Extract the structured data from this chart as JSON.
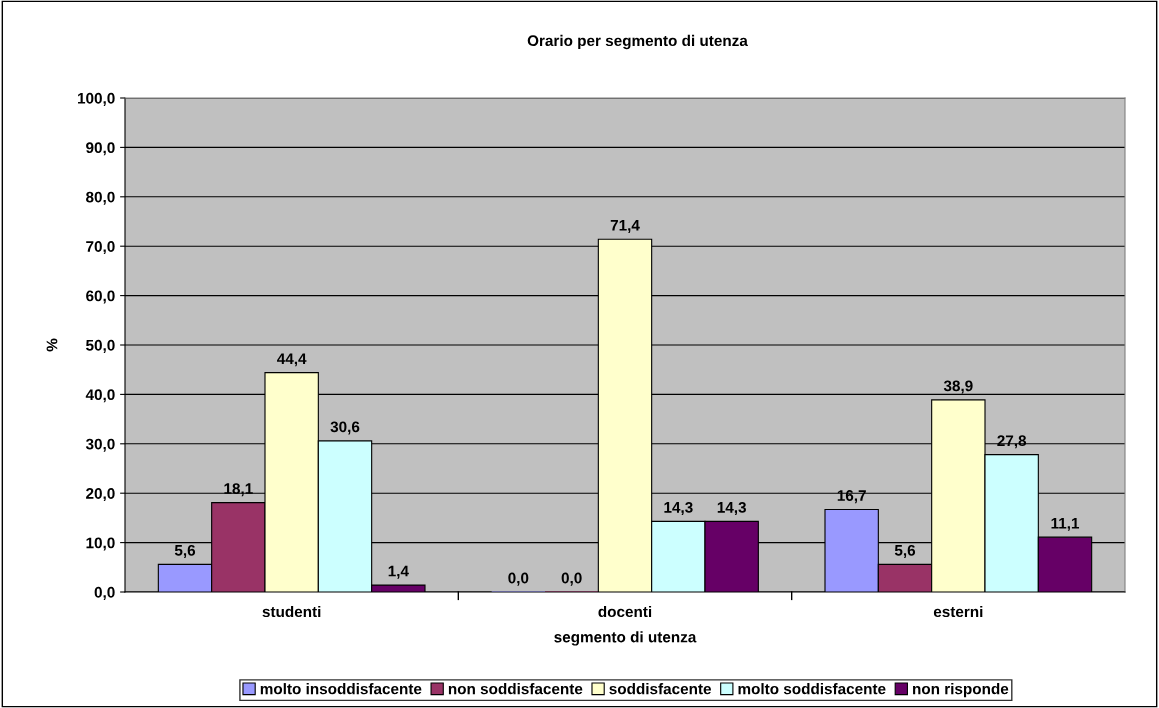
{
  "chart_data": {
    "type": "bar",
    "title": "Orario per segmento di utenza",
    "xlabel": "segmento di utenza",
    "ylabel": "%",
    "categories": [
      "studenti",
      "docenti",
      "esterni"
    ],
    "series": [
      {
        "name": "molto insoddisfacente",
        "color": "#9999ff",
        "values": [
          5.6,
          0.0,
          16.7
        ],
        "value_labels": [
          "5,6",
          "0,0",
          "16,7"
        ]
      },
      {
        "name": "non soddisfacente",
        "color": "#993366",
        "values": [
          18.1,
          0.0,
          5.6
        ],
        "value_labels": [
          "18,1",
          "0,0",
          "5,6"
        ]
      },
      {
        "name": "soddisfacente",
        "color": "#ffffcc",
        "values": [
          44.4,
          71.4,
          38.9
        ],
        "value_labels": [
          "44,4",
          "71,4",
          "38,9"
        ]
      },
      {
        "name": "molto soddisfacente",
        "color": "#ccffff",
        "values": [
          30.6,
          14.3,
          27.8
        ],
        "value_labels": [
          "30,6",
          "14,3",
          "27,8"
        ]
      },
      {
        "name": "non risponde",
        "color": "#660066",
        "values": [
          1.4,
          14.3,
          11.1
        ],
        "value_labels": [
          "1,4",
          "14,3",
          "11,1"
        ]
      }
    ],
    "ylim": [
      0,
      100
    ],
    "yticks": [
      {
        "value": 0,
        "label": "0,0"
      },
      {
        "value": 10,
        "label": "10,0"
      },
      {
        "value": 20,
        "label": "20,0"
      },
      {
        "value": 30,
        "label": "30,0"
      },
      {
        "value": 40,
        "label": "40,0"
      },
      {
        "value": 50,
        "label": "50,0"
      },
      {
        "value": 60,
        "label": "60,0"
      },
      {
        "value": 70,
        "label": "70,0"
      },
      {
        "value": 80,
        "label": "80,0"
      },
      {
        "value": 90,
        "label": "90,0"
      },
      {
        "value": 100,
        "label": "100,0"
      }
    ],
    "grid": "y",
    "legend": "bottom"
  }
}
